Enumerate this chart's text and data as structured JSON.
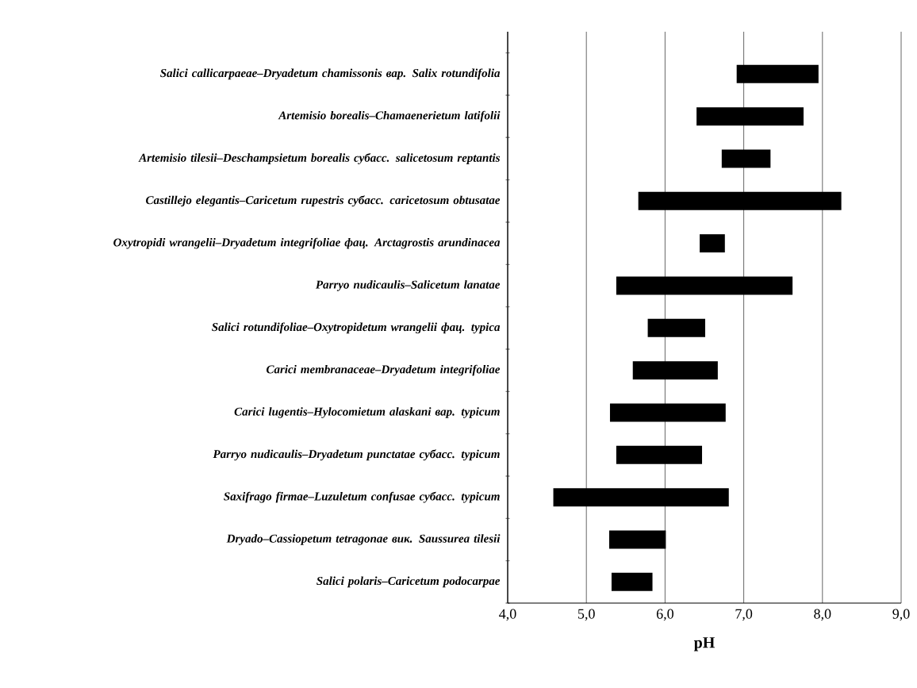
{
  "chart_data": {
    "type": "bar",
    "orientation": "horizontal",
    "xlabel": "pH",
    "categories": [
      "Salici callicarpaeae–Dryadetum chamissonis вар. Salix rotundifolia",
      "Artemisio borealis–Chamaenerietum latifolii",
      "Artemisio tilesii–Deschampsietum borealis субасс. salicetosum reptantis",
      "Castillejo elegantis–Caricetum rupestris субасс. caricetosum obtusatae",
      "Oxytropidi wrangelii–Dryadetum integrifoliae фац. Arctagrostis arundinacea",
      "Parryo nudicaulis–Salicetum lanatae",
      "Salici rotundifoliae–Oxytropidetum wrangelii фац. typica",
      "Carici membranaceae–Dryadetum integrifoliae",
      "Carici lugentis–Hylocomietum alaskani вар. typicum",
      "Parryo nudicaulis–Dryadetum punctatae субасс. typicum",
      "Saxifrago firmae–Luzuletum confusae субасс. typicum",
      "Dryado–Cassiopetum tetragonae вик. Saussurea tilesii",
      "Salici polaris–Caricetum podocarpae"
    ],
    "base": [
      6.91,
      6.4,
      6.72,
      5.66,
      6.44,
      5.38,
      5.78,
      5.59,
      5.3,
      5.38,
      4.58,
      5.29,
      5.32
    ],
    "values": [
      1.04,
      1.36,
      0.62,
      2.58,
      0.32,
      2.24,
      0.73,
      1.08,
      1.47,
      1.09,
      2.23,
      0.72,
      0.52
    ],
    "color": "#000000",
    "xlim": [
      4,
      9
    ],
    "xticks": [
      {
        "value": 4,
        "label": "4,0"
      },
      {
        "value": 5,
        "label": "5,0"
      },
      {
        "value": 6,
        "label": "6,0"
      },
      {
        "value": 7,
        "label": "7,0"
      },
      {
        "value": 8,
        "label": "8,0"
      },
      {
        "value": 9,
        "label": "9,0"
      }
    ],
    "grid": "x"
  }
}
